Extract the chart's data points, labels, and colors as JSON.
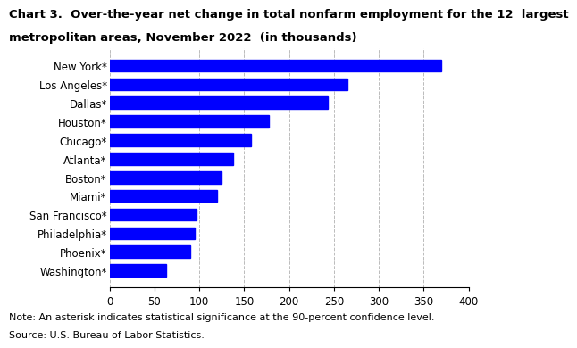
{
  "title_line1": "Chart 3.  Over-the-year net change in total nonfarm employment for the 12  largest",
  "title_line2": "metropolitan areas, November 2022  (in thousands)",
  "categories": [
    "Washington*",
    "Phoenix*",
    "Philadelphia*",
    "San Francisco*",
    "Miami*",
    "Boston*",
    "Atlanta*",
    "Chicago*",
    "Houston*",
    "Dallas*",
    "Los Angeles*",
    "New York*"
  ],
  "values": [
    63,
    90,
    95,
    97,
    120,
    125,
    138,
    158,
    178,
    243,
    265,
    370
  ],
  "bar_color": "#0000ff",
  "xlim": [
    0,
    400
  ],
  "xticks": [
    0,
    50,
    100,
    150,
    200,
    250,
    300,
    350,
    400
  ],
  "note": "Note: An asterisk indicates statistical significance at the 90-percent confidence level.",
  "source": "Source: U.S. Bureau of Labor Statistics.",
  "title_fontsize": 9.5,
  "tick_fontsize": 8.5,
  "note_fontsize": 8.0,
  "bar_height": 0.65,
  "grid_color": "#bbbbbb",
  "grid_style": "--",
  "grid_linewidth": 0.7
}
